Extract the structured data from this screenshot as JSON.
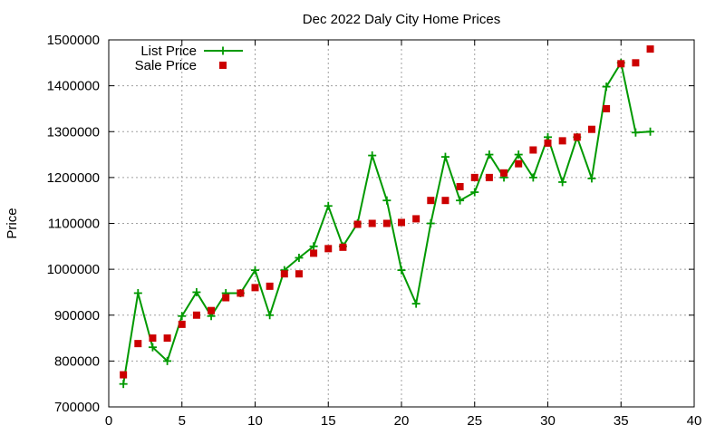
{
  "chart_data": {
    "type": "line",
    "title": "Dec 2022 Daly City Home Prices",
    "xlabel": "",
    "ylabel": "Price",
    "xlim": [
      0,
      40
    ],
    "ylim": [
      700000,
      1500000
    ],
    "xticks": [
      0,
      5,
      10,
      15,
      20,
      25,
      30,
      35,
      40
    ],
    "yticks": [
      700000,
      800000,
      900000,
      1000000,
      1100000,
      1200000,
      1300000,
      1400000,
      1500000
    ],
    "grid": true,
    "legend_position": "top-left",
    "series": [
      {
        "name": "List Price",
        "style": "line-with-plus-markers",
        "color": "#009900",
        "x": [
          1,
          2,
          3,
          4,
          5,
          6,
          7,
          8,
          9,
          10,
          11,
          12,
          13,
          14,
          15,
          16,
          17,
          18,
          19,
          20,
          21,
          22,
          23,
          24,
          25,
          26,
          27,
          28,
          29,
          30,
          31,
          32,
          33,
          34,
          35,
          36,
          37
        ],
        "y": [
          750000,
          948000,
          830000,
          800000,
          898000,
          950000,
          898000,
          948000,
          948000,
          998000,
          900000,
          998000,
          1025000,
          1050000,
          1138000,
          1050000,
          1100000,
          1248000,
          1150000,
          998000,
          925000,
          1100000,
          1245000,
          1150000,
          1168000,
          1250000,
          1200000,
          1250000,
          1200000,
          1288000,
          1190000,
          1288000,
          1198000,
          1398000,
          1450000,
          1298000,
          1300000
        ]
      },
      {
        "name": "Sale Price",
        "style": "square-markers",
        "color": "#cc0000",
        "x": [
          1,
          2,
          3,
          4,
          5,
          6,
          7,
          8,
          9,
          10,
          11,
          12,
          13,
          14,
          15,
          16,
          17,
          18,
          19,
          20,
          21,
          22,
          23,
          24,
          25,
          26,
          27,
          28,
          29,
          30,
          31,
          32,
          33,
          34,
          35,
          36,
          37
        ],
        "y": [
          770000,
          838000,
          850000,
          850000,
          880000,
          900000,
          910000,
          938000,
          948000,
          960000,
          963000,
          990000,
          990000,
          1035000,
          1045000,
          1048000,
          1098000,
          1100000,
          1100000,
          1102000,
          1110000,
          1150000,
          1150000,
          1180000,
          1200000,
          1200000,
          1210000,
          1230000,
          1260000,
          1275000,
          1280000,
          1288000,
          1305000,
          1350000,
          1448000,
          1450000,
          1480000
        ]
      }
    ]
  }
}
